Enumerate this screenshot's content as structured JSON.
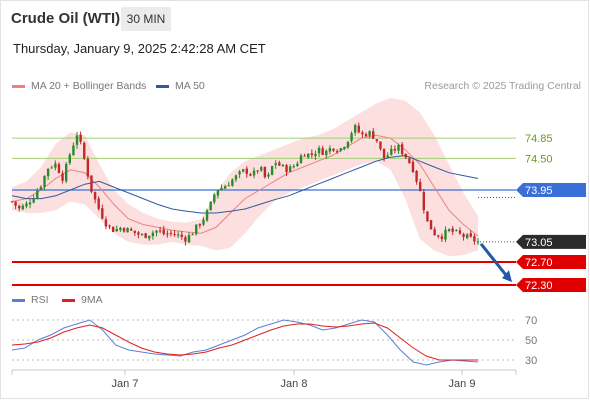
{
  "header": {
    "instrument": "Crude Oil (WTI)",
    "timeframe": "30 MIN",
    "datetime": "Thursday, January 9, 2025 2:42:28 AM CET"
  },
  "legend_main": [
    {
      "label": "MA 20 + Bollinger Bands",
      "color": "#f08080"
    },
    {
      "label": "MA 50",
      "color": "#2f5a9e"
    }
  ],
  "legend_rsi": [
    {
      "label": "RSI",
      "color": "#5b7fd6"
    },
    {
      "label": "9MA",
      "color": "#e02020"
    }
  ],
  "credit": "Research © 2025 Trading Central",
  "colors": {
    "up": "#2b8a2b",
    "down": "#c0282a",
    "bb_fill": "#fbd9d9",
    "ma20": "#f08080",
    "ma50": "#2f5a9e",
    "resistance": "#9fcf73",
    "pivot": "#3a6fd8",
    "support": "#e00000",
    "arrow": "#2457a6"
  },
  "chart_data": [
    {
      "type": "candlestick",
      "y_range": [
        72.3,
        75.6
      ],
      "x_ticks": [
        "Jan 7",
        "Jan 8",
        "Jan 9"
      ],
      "resistance_levels": [
        {
          "value": 74.85,
          "label": "74.85"
        },
        {
          "value": 74.5,
          "label": "74.50"
        }
      ],
      "pivot": {
        "value": 73.95,
        "label": "73.95"
      },
      "last_price": {
        "value": 73.05,
        "label": "73.05"
      },
      "support_levels": [
        {
          "value": 72.7,
          "label": "72.70"
        },
        {
          "value": 72.3,
          "label": "72.30"
        }
      ],
      "close_path": [
        73.75,
        73.62,
        73.7,
        73.85,
        74.05,
        74.35,
        74.4,
        74.15,
        74.6,
        74.95,
        74.45,
        73.9,
        73.6,
        73.35,
        73.25,
        73.3,
        73.25,
        73.2,
        73.15,
        73.2,
        73.25,
        73.18,
        73.2,
        73.15,
        73.1,
        73.25,
        73.4,
        73.6,
        73.95,
        74.0,
        74.1,
        74.2,
        74.3,
        74.2,
        74.35,
        74.1,
        74.45,
        74.35,
        74.3,
        74.4,
        74.6,
        74.55,
        74.65,
        74.6,
        74.7,
        74.65,
        74.8,
        75.05,
        74.9,
        74.95,
        74.85,
        74.5,
        74.6,
        74.7,
        74.55,
        74.35,
        73.95,
        73.4,
        73.2,
        73.15,
        73.25,
        73.2,
        73.15,
        73.1,
        73.05
      ],
      "ma50": [
        73.85,
        73.8,
        73.8,
        73.85,
        73.95,
        74.05,
        74.1,
        74.0,
        73.9,
        73.8,
        73.7,
        73.62,
        73.58,
        73.55,
        73.55,
        73.58,
        73.62,
        73.7,
        73.78,
        73.85,
        73.95,
        74.05,
        74.15,
        74.25,
        74.35,
        74.45,
        74.52,
        74.55,
        74.45,
        74.35,
        74.25,
        74.2,
        74.15
      ],
      "ma20": [
        73.75,
        73.8,
        73.95,
        74.15,
        74.3,
        74.25,
        74.0,
        73.7,
        73.45,
        73.35,
        73.3,
        73.25,
        73.22,
        73.2,
        73.3,
        73.55,
        73.8,
        73.95,
        74.1,
        74.25,
        74.35,
        74.45,
        74.55,
        74.7,
        74.85,
        74.9,
        74.85,
        74.65,
        74.4,
        74.0,
        73.6,
        73.35,
        73.15
      ],
      "bb_upper": [
        74.0,
        74.1,
        74.35,
        74.75,
        74.95,
        74.9,
        74.4,
        73.95,
        73.7,
        73.55,
        73.45,
        73.4,
        73.38,
        73.45,
        73.9,
        74.25,
        74.45,
        74.55,
        74.65,
        74.75,
        74.85,
        74.9,
        75.0,
        75.15,
        75.3,
        75.45,
        75.55,
        75.5,
        75.3,
        74.9,
        74.4,
        73.9,
        73.5
      ],
      "bb_lower": [
        73.6,
        73.55,
        73.55,
        73.6,
        73.75,
        73.7,
        73.45,
        73.2,
        73.05,
        73.0,
        73.0,
        73.05,
        73.0,
        72.98,
        72.9,
        72.95,
        73.2,
        73.5,
        73.75,
        73.9,
        74.0,
        74.1,
        74.2,
        74.3,
        74.4,
        74.45,
        74.3,
        73.8,
        73.1,
        72.9,
        72.8,
        72.82,
        72.9
      ],
      "target_arrow": {
        "from": 73.05,
        "to": 72.35
      }
    },
    {
      "type": "line",
      "y_range": [
        20,
        80
      ],
      "y_ticks": [
        70,
        50,
        30
      ],
      "series": [
        {
          "name": "RSI",
          "values": [
            40,
            42,
            50,
            55,
            62,
            66,
            70,
            60,
            45,
            40,
            38,
            36,
            35,
            34,
            38,
            40,
            45,
            50,
            55,
            62,
            66,
            70,
            68,
            65,
            60,
            62,
            66,
            70,
            68,
            55,
            40,
            28,
            25,
            28,
            30,
            29,
            28
          ]
        },
        {
          "name": "9MA",
          "values": [
            45,
            46,
            48,
            52,
            58,
            62,
            65,
            62,
            55,
            48,
            42,
            38,
            36,
            35,
            36,
            38,
            42,
            45,
            50,
            55,
            60,
            64,
            66,
            66,
            64,
            63,
            64,
            66,
            67,
            62,
            52,
            42,
            34,
            30,
            30,
            30,
            30
          ]
        }
      ]
    }
  ]
}
